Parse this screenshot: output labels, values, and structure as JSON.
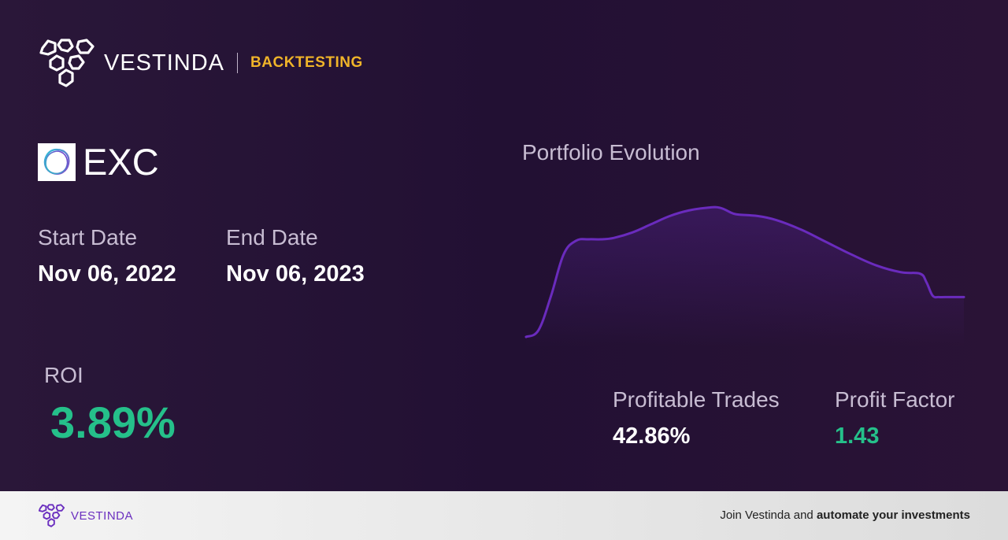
{
  "header": {
    "brand_name": "VESTINDA",
    "section": "BACKTESTING"
  },
  "ticker": {
    "symbol": "EXC",
    "logo_icon": "exelon-ring-icon"
  },
  "dates": {
    "start_label": "Start Date",
    "start_value": "Nov 06, 2022",
    "end_label": "End Date",
    "end_value": "Nov 06, 2023"
  },
  "roi": {
    "label": "ROI",
    "value": "3.89%"
  },
  "chart": {
    "title": "Portfolio Evolution"
  },
  "chart_data": {
    "type": "line",
    "title": "Portfolio Evolution",
    "x": [
      0,
      2,
      4,
      6,
      8,
      10,
      12,
      14,
      17,
      20,
      23,
      26,
      29,
      31,
      33,
      34,
      37,
      40,
      44,
      48,
      52,
      56,
      60,
      63,
      64,
      65,
      66,
      67,
      70
    ],
    "values": [
      0,
      5,
      30,
      60,
      70,
      71,
      71,
      72,
      76,
      82,
      88,
      92,
      94,
      94,
      90,
      89,
      88,
      85,
      78,
      69,
      60,
      52,
      47,
      46,
      40,
      30,
      29,
      29,
      29
    ],
    "series_color": "#6a2bbd",
    "ylim": [
      0,
      100
    ],
    "grid": false,
    "legend": "none"
  },
  "stats": {
    "profitable_label": "Profitable Trades",
    "profitable_value": "42.86%",
    "factor_label": "Profit Factor",
    "factor_value": "1.43"
  },
  "footer": {
    "brand_name": "VESTINDA",
    "cta_prefix": "Join Vestinda and ",
    "cta_bold": "automate your investments"
  },
  "colors": {
    "accent_gold": "#f0b429",
    "positive_green": "#25c08a",
    "brand_purple": "#6b2fbf"
  }
}
